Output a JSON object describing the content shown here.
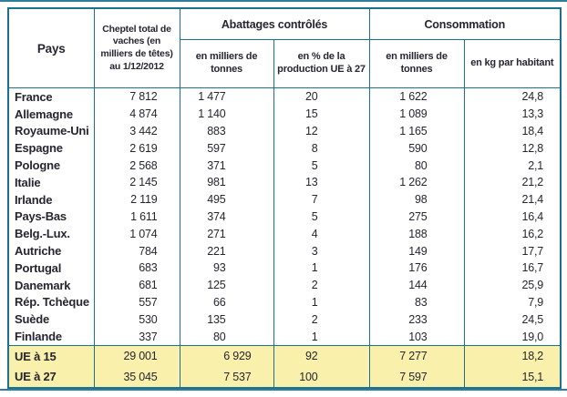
{
  "colors": {
    "border_teal": "#1b7290",
    "highlight_yellow": "#f9f0ac",
    "text_navy": "#272530",
    "rule_teal": "#2e7d99"
  },
  "table": {
    "header": {
      "pays": "Pays",
      "cheptel": "Cheptel total de vaches (en milliers de têtes) au 1/12/2012",
      "abattages_group": "Abattages contrôlés",
      "abattages_tonnes": "en milliers de tonnes",
      "abattages_pct": "en % de la production UE à 27",
      "consommation_group": "Consommation",
      "conso_tonnes": "en milliers de tonnes",
      "conso_kg": "en kg par habitant"
    },
    "rows": [
      [
        "France",
        "7 812",
        "1 477",
        "20",
        "1 622",
        "24,8"
      ],
      [
        "Allemagne",
        "4 874",
        "1 140",
        "15",
        "1 089",
        "13,3"
      ],
      [
        "Royaume-Uni",
        "3 442",
        "883",
        "12",
        "1 165",
        "18,4"
      ],
      [
        "Espagne",
        "2 619",
        "597",
        "8",
        "590",
        "12,8"
      ],
      [
        "Pologne",
        "2 568",
        "371",
        "5",
        "80",
        "2,1"
      ],
      [
        "Italie",
        "2 145",
        "981",
        "13",
        "1 262",
        "21,2"
      ],
      [
        "Irlande",
        "2 119",
        "495",
        "7",
        "98",
        "21,4"
      ],
      [
        "Pays-Bas",
        "1 611",
        "374",
        "5",
        "275",
        "16,4"
      ],
      [
        "Belg.-Lux.",
        "1 074",
        "271",
        "4",
        "188",
        "16,2"
      ],
      [
        "Autriche",
        "784",
        "221",
        "3",
        "149",
        "17,7"
      ],
      [
        "Portugal",
        "683",
        "93",
        "1",
        "176",
        "16,7"
      ],
      [
        "Danemark",
        "681",
        "125",
        "2",
        "144",
        "25,9"
      ],
      [
        "Rép. Tchèque",
        "557",
        "66",
        "1",
        "83",
        "7,9"
      ],
      [
        "Suède",
        "530",
        "135",
        "2",
        "233",
        "24,5"
      ],
      [
        "Finlande",
        "337",
        "80",
        "1",
        "103",
        "19,0"
      ]
    ],
    "totals": [
      [
        "UE à 15",
        "29 001",
        "6 929",
        "92",
        "7 277",
        "18,2"
      ],
      [
        "UE à 27",
        "35 045",
        "7 537",
        "100",
        "7 597",
        "15,1"
      ]
    ]
  }
}
